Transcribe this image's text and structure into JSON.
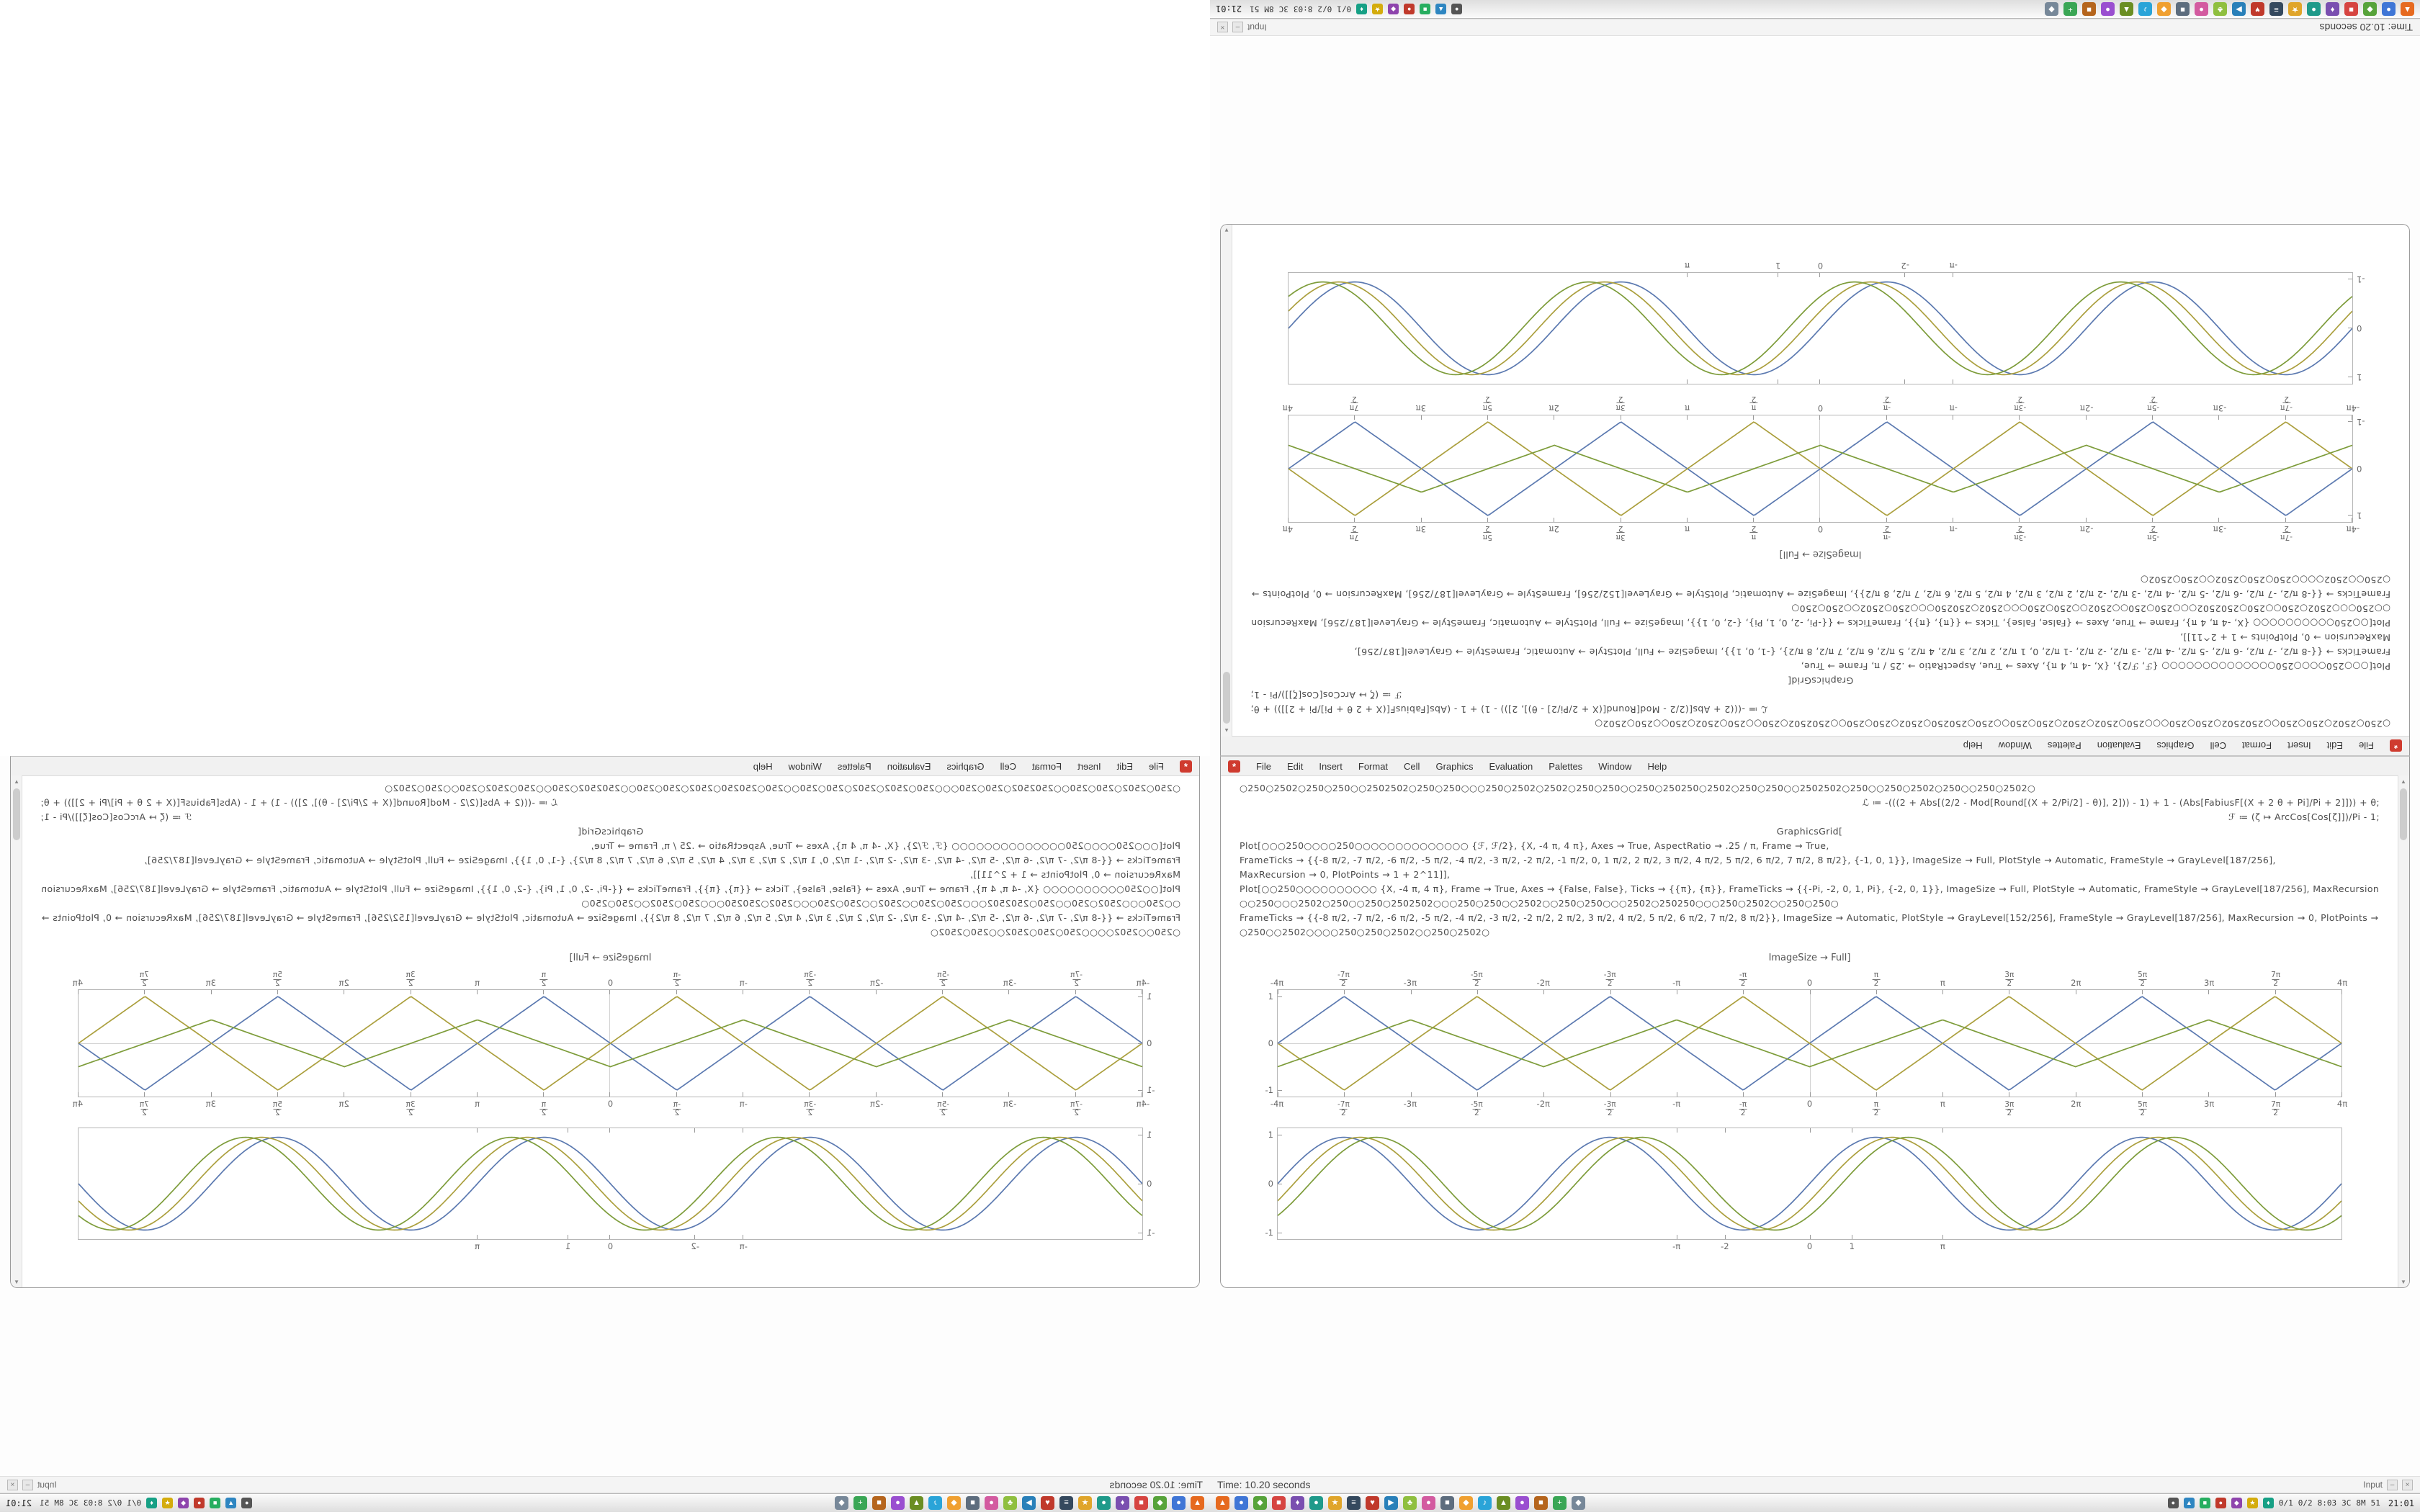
{
  "window": {
    "app_icon": "*",
    "menu": [
      "File",
      "Edit",
      "Insert",
      "Format",
      "Cell",
      "Graphics",
      "Evaluation",
      "Palettes",
      "Window",
      "Help"
    ],
    "scroll_up": "▲",
    "scroll_down": "▼",
    "code_lines": [
      {
        "align": "left",
        "text": "○250○2502○250○250○○2502502○250○250○○○250○2502○2502○250○250○○250○250250○2502○250○250○○2502502○250○○250○2502○250○○250○2502○"
      },
      {
        "align": "right",
        "text": "ℒ ≔ -(((2 + Abs[(2/2 - Mod[Round[(X + 2/Pi/2] - θ)], 2])) - 1) + 1 - (Abs[FabiusF[(X + 2 θ + Pi]/Pi + 2]])) + θ;"
      },
      {
        "align": "right",
        "text": "ℱ ≔ (ζ ↦ ArcCos[Cos[ζ]])/Pi - 1;"
      },
      {
        "align": "center",
        "text": "GraphicsGrid["
      },
      {
        "align": "left",
        "text": "Plot[○○○250○○○○250○○○○○○○○○○○○○○  {ℱ, ℱ/2},  {X, -4 π, 4 π},  Axes → True,  AspectRatio → .25 / π,  Frame → True,"
      },
      {
        "align": "left",
        "text": "FrameTicks → {{-8 π/2, -7 π/2, -6 π/2, -5 π/2, -4 π/2, -3 π/2, -2 π/2, -1 π/2, 0, 1 π/2, 2 π/2, 3 π/2, 4 π/2, 5 π/2, 6 π/2, 7 π/2, 8 π/2}, {-1, 0, 1}}, ImageSize → Full, PlotStyle → Automatic, FrameStyle → GrayLevel[187/256],"
      },
      {
        "align": "left",
        "text": "MaxRecursion → 0, PlotPoints → 1 + 2^11]],"
      },
      {
        "align": "left",
        "text": "Plot[○○250○○○○○○○○○○  {X, -4 π, 4 π}, Frame → True, Axes → {False, False}, Ticks → {{π}, {π}}, FrameTicks → {{-Pi, -2, 0, 1, Pi}, {-2, 0, 1}}, ImageSize → Full, PlotStyle → Automatic, FrameStyle → GrayLevel[187/256], MaxRecursion → 0, PlotPoints → 1 + 2^11]],"
      },
      {
        "align": "left",
        "text": "○○250○○○2502○250○○250○2502502○○○250○250○○2502○○250○250○○○2502○250250○○○250○2502○○250○250○"
      },
      {
        "align": "left",
        "text": "FrameTicks → {{-8 π/2, -7 π/2, -6 π/2, -5 π/2, -4 π/2, -3 π/2, -2 π/2, 2 π/2, 3 π/2, 4 π/2, 5 π/2, 6 π/2, 7 π/2, 8 π/2}}, ImageSize → Automatic, PlotStyle → GrayLevel[152/256], FrameStyle → GrayLevel[187/256], MaxRecursion → 0, PlotPoints → 1 + 2^11]]"
      },
      {
        "align": "left",
        "text": "○250○○2502○○○○250○250○2502○○250○2502○"
      }
    ],
    "caption": "ImageSize → Full]"
  },
  "status_strip": {
    "time": "Time: 10.20 seconds",
    "cell_style": "Input",
    "minimize": "–",
    "close": "×"
  },
  "taskbar": {
    "app_icons": [
      {
        "g": "▲",
        "c": "#e66a1f"
      },
      {
        "g": "●",
        "c": "#3f76d6"
      },
      {
        "g": "◆",
        "c": "#57a33a"
      },
      {
        "g": "■",
        "c": "#d64541"
      },
      {
        "g": "♦",
        "c": "#7a4fb0"
      },
      {
        "g": "●",
        "c": "#1f9a8a"
      },
      {
        "g": "★",
        "c": "#e0a52a"
      },
      {
        "g": "≡",
        "c": "#35495e"
      },
      {
        "g": "♥",
        "c": "#c0392b"
      },
      {
        "g": "▶",
        "c": "#2980b9"
      },
      {
        "g": "♣",
        "c": "#8fbf3f"
      },
      {
        "g": "●",
        "c": "#d35ba0"
      },
      {
        "g": "■",
        "c": "#5d6d7e"
      },
      {
        "g": "◆",
        "c": "#f0a030"
      },
      {
        "g": "♪",
        "c": "#2aa4d8"
      },
      {
        "g": "▲",
        "c": "#6b8e23"
      },
      {
        "g": "●",
        "c": "#9a4fd0"
      },
      {
        "g": "■",
        "c": "#b5651d"
      },
      {
        "g": "+",
        "c": "#3aa655"
      },
      {
        "g": "◆",
        "c": "#778899"
      }
    ],
    "tray_icons": [
      {
        "g": "●",
        "c": "#555555"
      },
      {
        "g": "▲",
        "c": "#2e86c1"
      },
      {
        "g": "■",
        "c": "#27ae60"
      },
      {
        "g": "●",
        "c": "#c0392b"
      },
      {
        "g": "◆",
        "c": "#8e44ad"
      },
      {
        "g": "★",
        "c": "#d4ac0d"
      },
      {
        "g": "♦",
        "c": "#16a085"
      }
    ],
    "tray_tokens": [
      "0/1",
      "0/2",
      "8:03",
      "3C",
      "8M",
      "51"
    ],
    "clock": "21:01"
  },
  "colors": {
    "series_blue": "#5b79b0",
    "series_olive": "#ab9f3d",
    "series_green": "#7d9c3a",
    "app_icon_red": "#cf3b2f",
    "frame_gray": "#b6b6b6"
  },
  "chart_data": [
    {
      "type": "line",
      "title": "",
      "description": "Triangle waves (ArcCos[Cos[x]]/Pi family), frame ticks at multiples of pi/2, labels above and below",
      "x_range": [
        -12.566,
        12.566
      ],
      "y_range": [
        -1,
        1
      ],
      "axes": true,
      "labels_top": true,
      "labels_bottom": true,
      "x_ticks": [
        {
          "v": -12.566,
          "l": "-4π"
        },
        {
          "v": -10.996,
          "l": "-7π/2"
        },
        {
          "v": -9.425,
          "l": "-3π"
        },
        {
          "v": -7.854,
          "l": "-5π/2"
        },
        {
          "v": -6.283,
          "l": "-2π"
        },
        {
          "v": -4.712,
          "l": "-3π/2"
        },
        {
          "v": -3.1416,
          "l": "-π"
        },
        {
          "v": -1.5708,
          "l": "-π/2"
        },
        {
          "v": 0,
          "l": "0"
        },
        {
          "v": 1.5708,
          "l": "π/2"
        },
        {
          "v": 3.1416,
          "l": "π"
        },
        {
          "v": 4.712,
          "l": "3π/2"
        },
        {
          "v": 6.283,
          "l": "2π"
        },
        {
          "v": 7.854,
          "l": "5π/2"
        },
        {
          "v": 9.425,
          "l": "3π"
        },
        {
          "v": 10.996,
          "l": "7π/2"
        },
        {
          "v": 12.566,
          "l": "4π"
        }
      ],
      "y_ticks": [
        {
          "v": 1,
          "l": "1"
        },
        {
          "v": 0,
          "l": "0"
        },
        {
          "v": -1,
          "l": "-1"
        }
      ],
      "series": [
        {
          "name": "ℱ",
          "fn": "tri",
          "phase": 0,
          "amp": 1,
          "color": "#5b79b0"
        },
        {
          "name": "ℱ/2",
          "fn": "tri",
          "phase": 3.1416,
          "amp": 1,
          "color": "#ab9f3d"
        },
        {
          "name": "",
          "fn": "tri",
          "phase": 1.5708,
          "amp": 0.5,
          "color": "#7d9c3a"
        }
      ]
    },
    {
      "type": "line",
      "title": "",
      "description": "Bundle of phase-shifted sine curves over -4pi..4pi, sparse frame ticks {-Pi,-2,0,1,Pi}",
      "x_range": [
        -12.566,
        12.566
      ],
      "y_range": [
        -1,
        1
      ],
      "axes": false,
      "labels_top": false,
      "labels_bottom": true,
      "x_ticks": [
        {
          "v": -3.1416,
          "l": "-π"
        },
        {
          "v": -2,
          "l": "-2"
        },
        {
          "v": 0,
          "l": "0"
        },
        {
          "v": 1,
          "l": "1"
        },
        {
          "v": 3.1416,
          "l": "π"
        }
      ],
      "y_ticks": [
        {
          "v": 1,
          "l": "1"
        },
        {
          "v": 0,
          "l": "0"
        },
        {
          "v": -1,
          "l": "-1"
        }
      ],
      "series": [
        {
          "name": "",
          "fn": "sin",
          "phase": 0,
          "amp": 0.95,
          "color": "#5b79b0"
        },
        {
          "name": "",
          "fn": "sin",
          "phase": 0.38,
          "amp": 0.95,
          "color": "#ab9f3d"
        },
        {
          "name": "",
          "fn": "sin",
          "phase": 0.76,
          "amp": 0.95,
          "color": "#7d9c3a"
        }
      ]
    }
  ]
}
